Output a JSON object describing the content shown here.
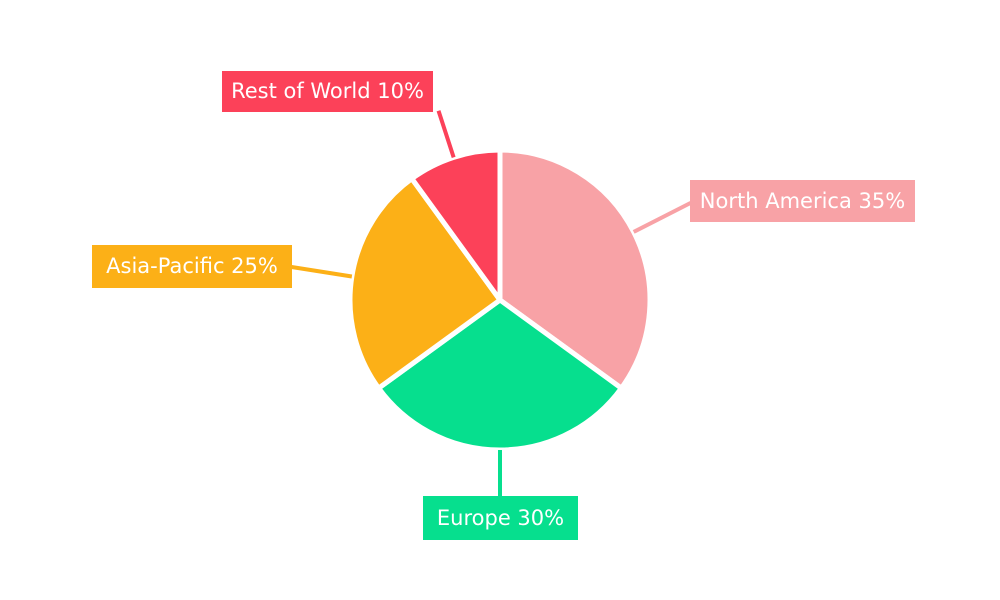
{
  "page": {
    "background_color": "#ffffff",
    "label_text_color": "#ffffff"
  },
  "chart_data": {
    "type": "pie",
    "title": "",
    "unit": "%",
    "start_angle": "top",
    "direction": "clockwise",
    "legend_position": "none",
    "labels_style": "callout boxes filled with slice color, white text, radial leader lines",
    "slices": [
      {
        "name": "North America",
        "value": 35,
        "color": "#F8A2A6",
        "label_text": "North America 35%"
      },
      {
        "name": "Europe",
        "value": 30,
        "color": "#06DF8E",
        "label_text": "Europe 30%"
      },
      {
        "name": "Asia-Pacific",
        "value": 25,
        "color": "#FCB017",
        "label_text": "Asia-Pacific 25%"
      },
      {
        "name": "Rest of World",
        "value": 10,
        "color": "#FC4159",
        "label_text": "Rest of World 10%"
      }
    ]
  }
}
